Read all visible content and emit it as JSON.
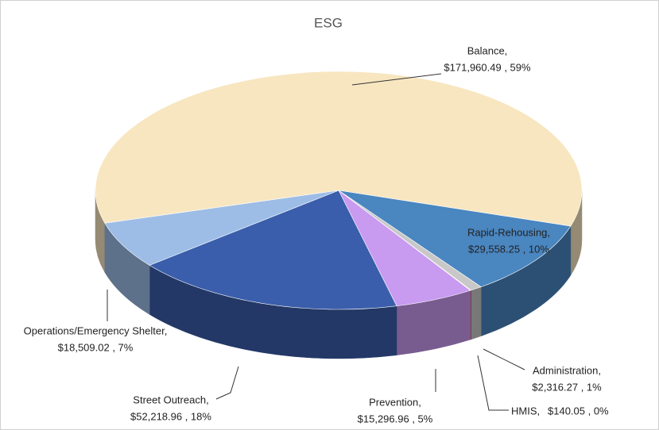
{
  "chart_data": {
    "type": "pie",
    "title": "ESG",
    "categories": [
      "Balance,",
      "Rapid-Rehousing,",
      "Administration,",
      "HMIS,",
      "Prevention,",
      "Street Outreach,",
      "Operations/Emergency Shelter,"
    ],
    "values": [
      171960.49,
      29558.25,
      2316.27,
      140.05,
      15296.96,
      52218.96,
      18509.02
    ],
    "value_labels": [
      "$171,960.49 , 59%",
      "$29,558.25 , 10%",
      "$2,316.27 , 1%",
      "$140.05 , 0%",
      "$15,296.96 , 5%",
      "$52,218.96 , 18%",
      "$18,509.02 , 7%"
    ],
    "colors": [
      "#f8e6c0",
      "#4a86c0",
      "#c8c8c8",
      "#e04060",
      "#c89af0",
      "#3a5eab",
      "#9dbde6"
    ]
  }
}
